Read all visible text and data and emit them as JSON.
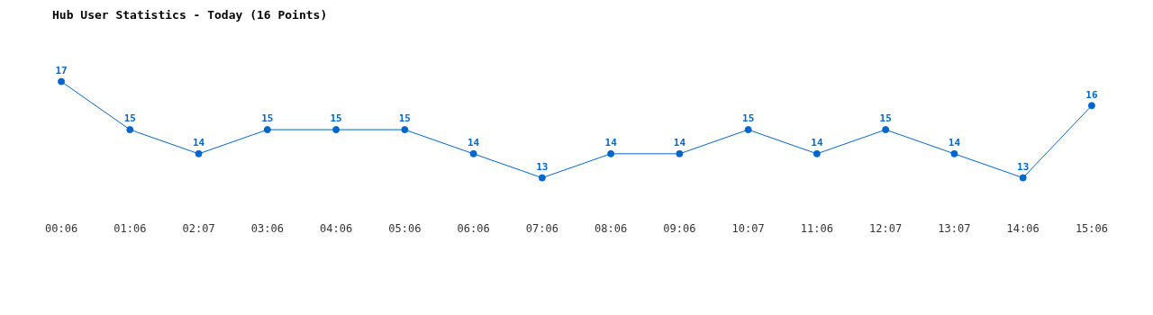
{
  "chart_data": {
    "type": "line",
    "title": "Hub User Statistics - Today (16 Points)",
    "categories": [
      "00:06",
      "01:06",
      "02:07",
      "03:06",
      "04:06",
      "05:06",
      "06:06",
      "07:06",
      "08:06",
      "09:06",
      "10:07",
      "11:06",
      "12:07",
      "13:07",
      "14:06",
      "15:06"
    ],
    "series": [
      {
        "color": "#0066cc",
        "values": [
          17,
          15,
          14,
          15,
          15,
          15,
          14,
          13,
          14,
          14,
          15,
          14,
          15,
          14,
          13,
          16
        ]
      }
    ],
    "data_labels": true,
    "grid": false,
    "legend": false,
    "tick_labels": "x",
    "marker": "circle",
    "line_style": "solid"
  }
}
